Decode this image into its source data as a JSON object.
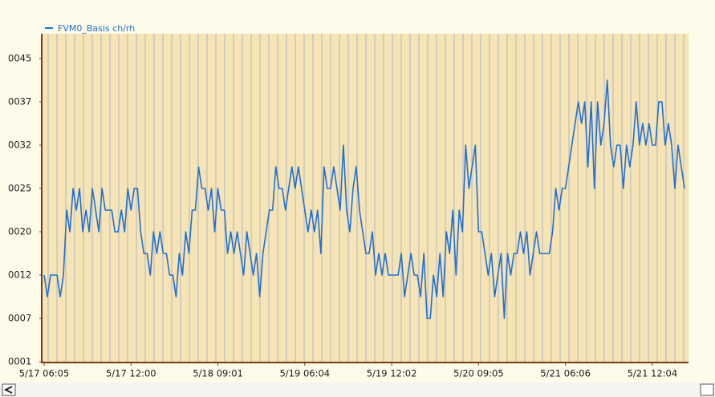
{
  "chart_data": {
    "type": "line",
    "color": "#1f6fd6",
    "categories": [
      "5/17 06:05",
      null,
      null,
      null,
      null,
      null,
      null,
      null,
      null,
      null,
      null,
      null,
      null,
      null,
      null,
      null,
      null,
      null,
      null,
      null,
      null,
      null,
      null,
      null,
      null,
      null,
      null,
      "5/17 12:00",
      null,
      null,
      null,
      null,
      null,
      null,
      null,
      null,
      null,
      null,
      null,
      null,
      null,
      null,
      null,
      null,
      null,
      null,
      null,
      null,
      null,
      null,
      null,
      null,
      null,
      null,
      "5/18 09:01",
      null,
      null,
      null,
      null,
      null,
      null,
      null,
      null,
      null,
      null,
      null,
      null,
      null,
      null,
      null,
      null,
      null,
      null,
      null,
      null,
      null,
      null,
      null,
      null,
      null,
      null,
      "5/19 06:04",
      null,
      null,
      null,
      null,
      null,
      null,
      null,
      null,
      null,
      null,
      null,
      null,
      null,
      null,
      null,
      null,
      null,
      null,
      null,
      null,
      null,
      null,
      null,
      null,
      null,
      null,
      "5/19 12:02",
      null,
      null,
      null,
      null,
      null,
      null,
      null,
      null,
      null,
      null,
      null,
      null,
      null,
      null,
      null,
      null,
      null,
      null,
      null,
      null,
      null,
      null,
      null,
      null,
      null,
      null,
      "5/20 09:05",
      null,
      null,
      null,
      null,
      null,
      null,
      null,
      null,
      null,
      null,
      null,
      null,
      null,
      null,
      null,
      null,
      null,
      null,
      null,
      null,
      null,
      null,
      null,
      null,
      null,
      null,
      "5/21 06:06",
      null,
      null,
      null,
      null,
      null,
      null,
      null,
      null,
      null,
      null,
      null,
      null,
      null,
      null,
      null,
      null,
      null,
      null,
      null,
      null,
      null,
      null,
      null,
      null,
      null,
      null,
      "5/21 12:04",
      null,
      null,
      null,
      null,
      null,
      null,
      null,
      null,
      null,
      null
    ],
    "series": [
      {
        "name": "FVM0_Basis ch/rh",
        "color": "#1f6fd6",
        "values": [
          12,
          9.5,
          12,
          12,
          12,
          9.5,
          12,
          22.5,
          20,
          25,
          22.5,
          25,
          20,
          22.5,
          20,
          25,
          22.5,
          20,
          25,
          22.5,
          22.5,
          22.5,
          20,
          20,
          22.5,
          20,
          25,
          22.5,
          25,
          25,
          20,
          16,
          16,
          12,
          20,
          16,
          20,
          16,
          16,
          12,
          12,
          9.5,
          16,
          12,
          20,
          16,
          22.5,
          22.5,
          28.5,
          25,
          25,
          22.5,
          25,
          20,
          25,
          22.5,
          22.5,
          16,
          20,
          16,
          20,
          16,
          12,
          20,
          16,
          12,
          16,
          9.5,
          16,
          20,
          22.5,
          22.5,
          28.5,
          25,
          25,
          22.5,
          25,
          28.5,
          25,
          28.5,
          25,
          22.5,
          20,
          22.5,
          20,
          22.5,
          16,
          28.5,
          25,
          25,
          28.5,
          25,
          22.5,
          32,
          22.5,
          20,
          25,
          28.5,
          22.5,
          20,
          16,
          16,
          20,
          12,
          16,
          12,
          16,
          12,
          12,
          12,
          12,
          16,
          9.5,
          12,
          16,
          12,
          12,
          9.5,
          16,
          7,
          7,
          12,
          9.5,
          16,
          9.5,
          20,
          16,
          22.5,
          12,
          22.5,
          20,
          32,
          25,
          28.5,
          32,
          20,
          20,
          16,
          12,
          16,
          9.5,
          12,
          16,
          7,
          16,
          12,
          16,
          16,
          20,
          16,
          20,
          12,
          16,
          20,
          16,
          16,
          16,
          16,
          20,
          25,
          22.5,
          25,
          25,
          28.5,
          32,
          34.5,
          37,
          34.5,
          37,
          28.5,
          37,
          25,
          37,
          32,
          34.5,
          41,
          32,
          28.5,
          32,
          32,
          25,
          32,
          28.5,
          32,
          37,
          32,
          34.5,
          32,
          34.5,
          32,
          32,
          37,
          37,
          32,
          34.5,
          32,
          25,
          32,
          28.5,
          25
        ]
      }
    ],
    "ylim": [
      1,
      45
    ],
    "yticks": [
      {
        "value": 1,
        "label": "0001"
      },
      {
        "value": 7,
        "label": "0007"
      },
      {
        "value": 12,
        "label": "0012"
      },
      {
        "value": 20,
        "label": "0020"
      },
      {
        "value": 25,
        "label": "0025"
      },
      {
        "value": 32,
        "label": "0032"
      },
      {
        "value": 37,
        "label": "0037"
      },
      {
        "value": 45,
        "label": "0045"
      }
    ]
  }
}
